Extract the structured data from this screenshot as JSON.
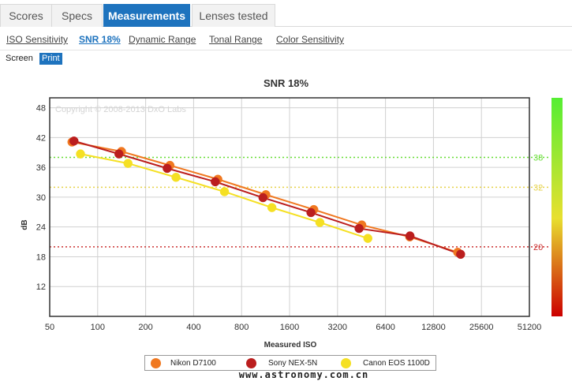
{
  "tabs": [
    {
      "label": "Scores"
    },
    {
      "label": "Specs"
    },
    {
      "label": "Measurements"
    },
    {
      "label": "Lenses tested"
    }
  ],
  "subnav": [
    {
      "label": "ISO Sensitivity"
    },
    {
      "label": "SNR 18%"
    },
    {
      "label": "Dynamic Range"
    },
    {
      "label": "Tonal Range"
    },
    {
      "label": "Color Sensitivity"
    }
  ],
  "mode": {
    "screen": "Screen",
    "print": "Print"
  },
  "watermark": "www.astronomy.com.cn",
  "chart_data": {
    "type": "line",
    "title": "SNR 18%",
    "xlabel": "Measured ISO",
    "ylabel": "dB",
    "x_scale": "log2",
    "xlim": [
      50,
      51200
    ],
    "ylim": [
      6,
      50
    ],
    "x_ticks": [
      50,
      100,
      200,
      400,
      800,
      1600,
      3200,
      6400,
      12800,
      25600,
      51200
    ],
    "y_ticks": [
      12,
      18,
      24,
      30,
      36,
      42,
      48
    ],
    "grid": true,
    "copyright": "Copyright © 2008-2013 DxO Labs",
    "reference_lines": [
      {
        "value": 38,
        "color": "#66dd33"
      },
      {
        "value": 32,
        "color": "#e6d24a"
      },
      {
        "value": 20,
        "color": "#cc3333"
      }
    ],
    "series": [
      {
        "name": "Nikon D7100",
        "color": "#f07820",
        "points": [
          [
            69,
            41.1
          ],
          [
            141,
            39.2
          ],
          [
            284,
            36.4
          ],
          [
            568,
            33.6
          ],
          [
            1136,
            30.5
          ],
          [
            2271,
            27.5
          ],
          [
            4543,
            24.4
          ],
          [
            9086,
            22.0
          ],
          [
            18170,
            18.9
          ]
        ]
      },
      {
        "name": "Sony NEX-5N",
        "color": "#bb1e1e",
        "points": [
          [
            71,
            41.3
          ],
          [
            136,
            38.7
          ],
          [
            273,
            35.8
          ],
          [
            547,
            33.1
          ],
          [
            1090,
            29.9
          ],
          [
            2180,
            26.9
          ],
          [
            4370,
            23.7
          ],
          [
            9120,
            22.2
          ],
          [
            18950,
            18.5
          ]
        ]
      },
      {
        "name": "Canon EOS 1100D",
        "color": "#f5e023",
        "points": [
          [
            78,
            38.7
          ],
          [
            155,
            36.8
          ],
          [
            310,
            34.0
          ],
          [
            625,
            31.1
          ],
          [
            1240,
            27.9
          ],
          [
            2480,
            24.9
          ],
          [
            4960,
            21.7
          ]
        ]
      }
    ],
    "color_bar": {
      "colors": [
        "#cc0000",
        "#e8e030",
        "#55ee33"
      ]
    },
    "legend_position": "bottom"
  }
}
